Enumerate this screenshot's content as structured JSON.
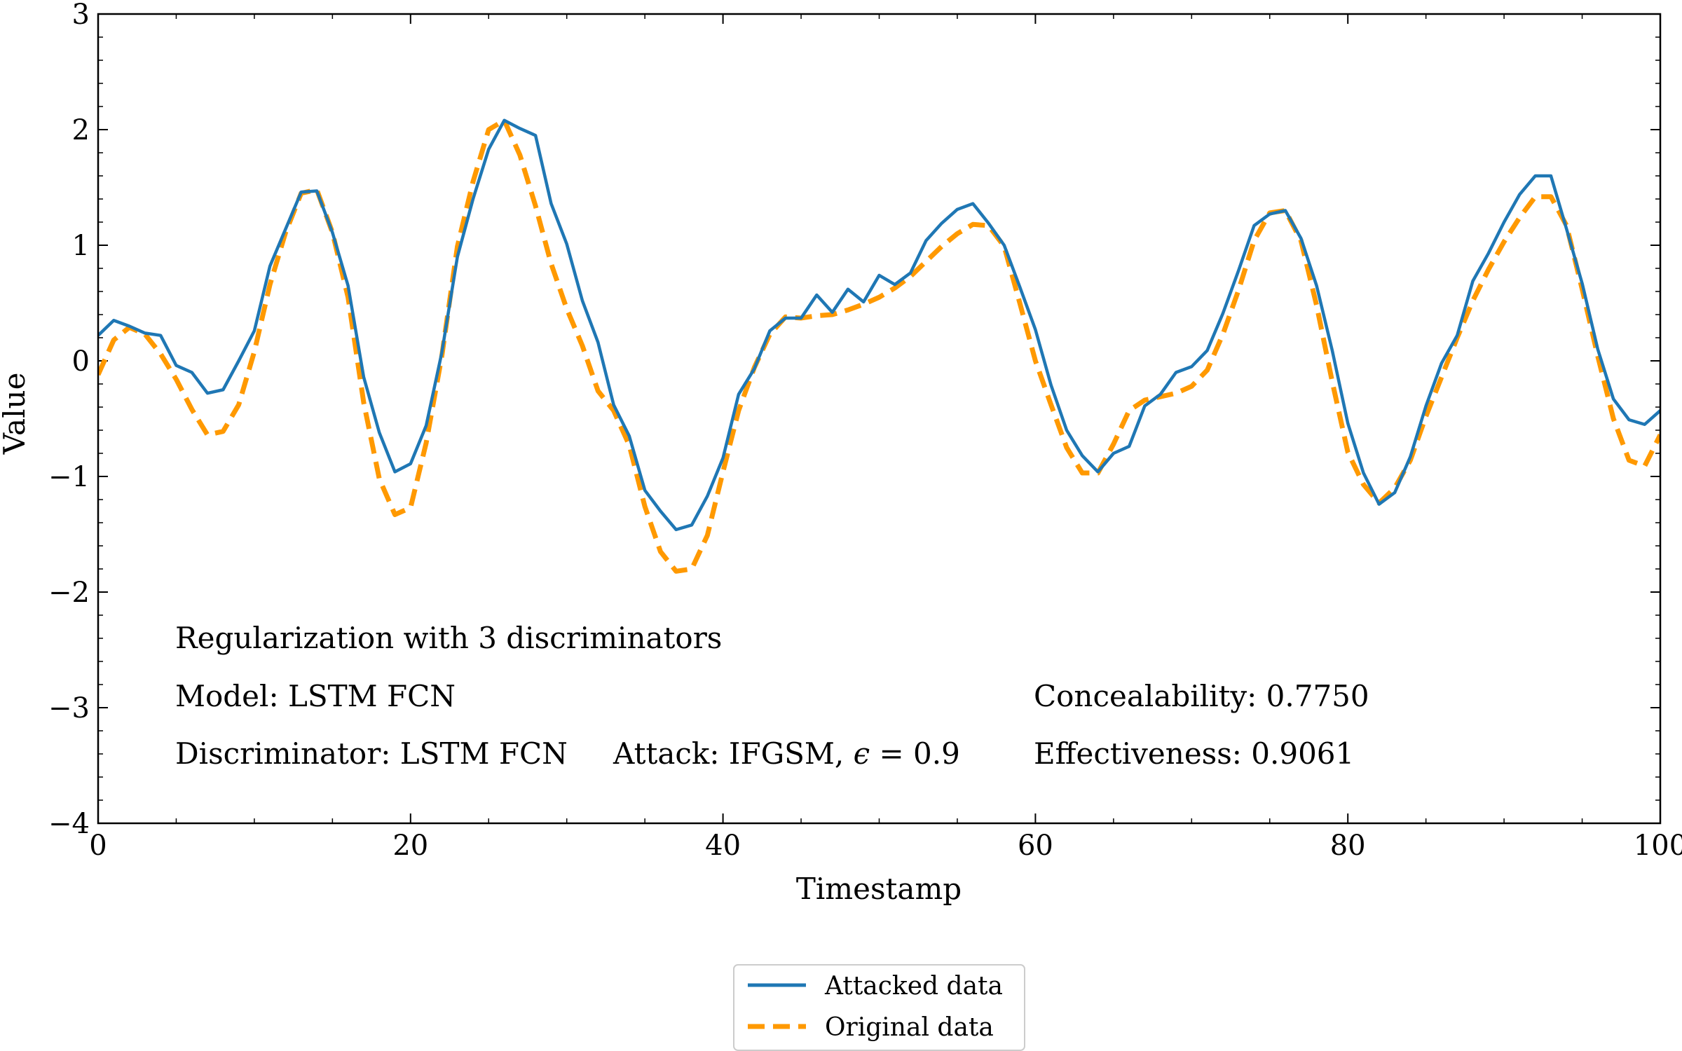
{
  "chart_data": {
    "type": "line",
    "xlabel": "Timestamp",
    "ylabel": "Value",
    "xlim": [
      0,
      100
    ],
    "ylim": [
      -4,
      3
    ],
    "xticks": [
      0,
      20,
      40,
      60,
      80,
      100
    ],
    "yticks": [
      -4,
      -3,
      -2,
      -1,
      0,
      1,
      2,
      3
    ],
    "xtick_labels": [
      "0",
      "20",
      "40",
      "60",
      "80",
      "100"
    ],
    "ytick_labels": [
      "−4",
      "−3",
      "−2",
      "−1",
      "0",
      "1",
      "2",
      "3"
    ],
    "grid": false,
    "legend_position": "bottom-center-outside",
    "x": [
      0,
      1,
      2,
      3,
      4,
      5,
      6,
      7,
      8,
      9,
      10,
      11,
      12,
      13,
      14,
      15,
      16,
      17,
      18,
      19,
      20,
      21,
      22,
      23,
      24,
      25,
      26,
      27,
      28,
      29,
      30,
      31,
      32,
      33,
      34,
      35,
      36,
      37,
      38,
      39,
      40,
      41,
      42,
      43,
      44,
      45,
      46,
      47,
      48,
      49,
      50,
      51,
      52,
      53,
      54,
      55,
      56,
      57,
      58,
      59,
      60,
      61,
      62,
      63,
      64,
      65,
      66,
      67,
      68,
      69,
      70,
      71,
      72,
      73,
      74,
      75,
      76,
      77,
      78,
      79,
      80,
      81,
      82,
      83,
      84,
      85,
      86,
      87,
      88,
      89,
      90,
      91,
      92,
      93,
      94,
      95,
      96,
      97,
      98,
      99,
      100
    ],
    "series": [
      {
        "name": "Attacked data",
        "color": "#1f77b4",
        "style": "solid",
        "values": [
          0.22,
          0.35,
          0.3,
          0.24,
          0.22,
          -0.04,
          -0.1,
          -0.28,
          -0.25,
          0.0,
          0.26,
          0.82,
          1.14,
          1.46,
          1.47,
          1.11,
          0.65,
          -0.14,
          -0.62,
          -0.96,
          -0.89,
          -0.56,
          0.07,
          0.9,
          1.4,
          1.83,
          2.08,
          2.01,
          1.95,
          1.36,
          1.01,
          0.52,
          0.16,
          -0.38,
          -0.65,
          -1.12,
          -1.3,
          -1.46,
          -1.42,
          -1.17,
          -0.84,
          -0.29,
          -0.07,
          0.26,
          0.37,
          0.37,
          0.57,
          0.42,
          0.62,
          0.51,
          0.74,
          0.66,
          0.76,
          1.04,
          1.19,
          1.31,
          1.36,
          1.19,
          1.0,
          0.64,
          0.27,
          -0.21,
          -0.6,
          -0.82,
          -0.96,
          -0.8,
          -0.74,
          -0.39,
          -0.29,
          -0.1,
          -0.05,
          0.09,
          0.41,
          0.78,
          1.17,
          1.27,
          1.3,
          1.06,
          0.65,
          0.09,
          -0.54,
          -0.97,
          -1.24,
          -1.14,
          -0.83,
          -0.39,
          -0.02,
          0.22,
          0.69,
          0.93,
          1.2,
          1.44,
          1.6,
          1.6,
          1.14,
          0.67,
          0.1,
          -0.33,
          -0.51,
          -0.55,
          -0.43
        ]
      },
      {
        "name": "Original data",
        "color": "#ff9900",
        "style": "dashed",
        "values": [
          -0.12,
          0.18,
          0.29,
          0.23,
          0.06,
          -0.16,
          -0.42,
          -0.64,
          -0.61,
          -0.38,
          0.08,
          0.66,
          1.11,
          1.45,
          1.48,
          1.11,
          0.55,
          -0.36,
          -1.02,
          -1.33,
          -1.27,
          -0.71,
          0.04,
          0.99,
          1.55,
          2.0,
          2.08,
          1.78,
          1.34,
          0.84,
          0.45,
          0.13,
          -0.26,
          -0.43,
          -0.73,
          -1.26,
          -1.65,
          -1.82,
          -1.8,
          -1.51,
          -0.96,
          -0.43,
          -0.06,
          0.23,
          0.38,
          0.37,
          0.39,
          0.4,
          0.44,
          0.49,
          0.55,
          0.63,
          0.73,
          0.86,
          0.99,
          1.1,
          1.18,
          1.17,
          0.99,
          0.5,
          0.0,
          -0.38,
          -0.75,
          -0.97,
          -0.97,
          -0.72,
          -0.43,
          -0.34,
          -0.31,
          -0.28,
          -0.22,
          -0.08,
          0.23,
          0.61,
          1.04,
          1.28,
          1.3,
          1.04,
          0.48,
          -0.18,
          -0.79,
          -1.07,
          -1.23,
          -1.1,
          -0.86,
          -0.48,
          -0.14,
          0.2,
          0.52,
          0.79,
          1.03,
          1.24,
          1.42,
          1.42,
          1.17,
          0.62,
          0.04,
          -0.5,
          -0.86,
          -0.91,
          -0.64
        ]
      }
    ],
    "annotations": {
      "line1": "Regularization with 3 discriminators",
      "line2": "Model: LSTM FCN",
      "line3_left": "Discriminator: LSTM FCN",
      "line3_attack_prefix": "Attack: IFGSM, ",
      "line3_attack_symbol": "ϵ",
      "line3_attack_value": " = 0.9",
      "concealability": "Concealability: 0.7750",
      "effectiveness": "Effectiveness: 0.9061"
    }
  }
}
